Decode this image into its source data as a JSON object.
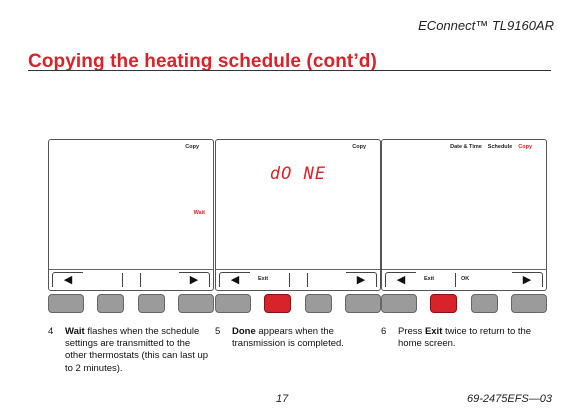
{
  "header": {
    "product": "EConnect™ TL9160AR"
  },
  "title": "Copying the heating schedule (cont’d)",
  "steps": [
    {
      "screen": {
        "top_labels": [
          {
            "text": "Copy",
            "active": false
          }
        ],
        "side_label": "Wait",
        "center_text": "",
        "softkeys": {
          "left": "",
          "right": ""
        },
        "pressed_key": -1
      },
      "number": "4",
      "bold": "Wait",
      "text": "flashes when the schedule settings are transmitted to the other thermostats (this can last up to 2 minutes)."
    },
    {
      "screen": {
        "top_labels": [
          {
            "text": "Copy",
            "active": false
          }
        ],
        "side_label": "",
        "center_text": "dO NE",
        "softkeys": {
          "left": "Exit",
          "right": ""
        },
        "pressed_key": 1
      },
      "number": "5",
      "bold": "Done",
      "text": "appears when the transmission is completed."
    },
    {
      "screen": {
        "top_labels": [
          {
            "text": "Date & Time",
            "active": false
          },
          {
            "text": "Schedule",
            "active": false
          },
          {
            "text": "Copy",
            "active": true
          }
        ],
        "side_label": "",
        "center_text": "",
        "softkeys": {
          "left": "Exit",
          "right": "OK"
        },
        "pressed_key": 1
      },
      "number": "6",
      "pre": "Press",
      "bold": "Exit",
      "text": "twice to return to the home screen."
    }
  ],
  "footer": {
    "page": "17",
    "doc": "69-2475EFS—03"
  },
  "colors": {
    "accent": "#d8232a",
    "key": "#9b9b9b"
  },
  "icons": {
    "left": "left-arrow-icon",
    "right": "right-arrow-icon"
  }
}
